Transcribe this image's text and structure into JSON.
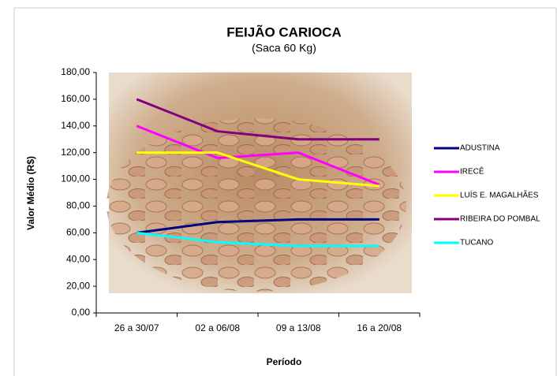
{
  "chart_data": {
    "type": "line",
    "title": "FEIJÃO CARIOCA",
    "subtitle": "(Saca 60 Kg)",
    "x_label": "Período",
    "y_label": "Valor Médio (R$)",
    "categories": [
      "26 a 30/07",
      "02 a 06/08",
      "09 a 13/08",
      "16 a 20/08"
    ],
    "series": [
      {
        "name": "ADUSTINA",
        "color": "#000080",
        "values": [
          60,
          68,
          70,
          70
        ]
      },
      {
        "name": "IRECÊ",
        "color": "#ff00ff",
        "values": [
          140,
          116,
          120,
          96
        ]
      },
      {
        "name": "LUÍS E. MAGALHÃES",
        "color": "#ffff00",
        "values": [
          120,
          120,
          100,
          95
        ]
      },
      {
        "name": "RIBEIRA DO POMBAL",
        "color": "#800080",
        "values": [
          160,
          136,
          130,
          130
        ]
      },
      {
        "name": "TUCANO",
        "color": "#00ffff",
        "values": [
          60,
          53,
          50,
          50
        ]
      }
    ],
    "ylim": [
      0,
      180
    ],
    "yticks": [
      {
        "value": 0,
        "label": "0,00"
      },
      {
        "value": 20,
        "label": "20,00"
      },
      {
        "value": 40,
        "label": "40,00"
      },
      {
        "value": 60,
        "label": "60,00"
      },
      {
        "value": 80,
        "label": "80,00"
      },
      {
        "value": 100,
        "label": "100,00"
      },
      {
        "value": 120,
        "label": "120,00"
      },
      {
        "value": 140,
        "label": "140,00"
      },
      {
        "value": 160,
        "label": "160,00"
      },
      {
        "value": 180,
        "label": "180,00"
      }
    ],
    "legend": "right"
  }
}
